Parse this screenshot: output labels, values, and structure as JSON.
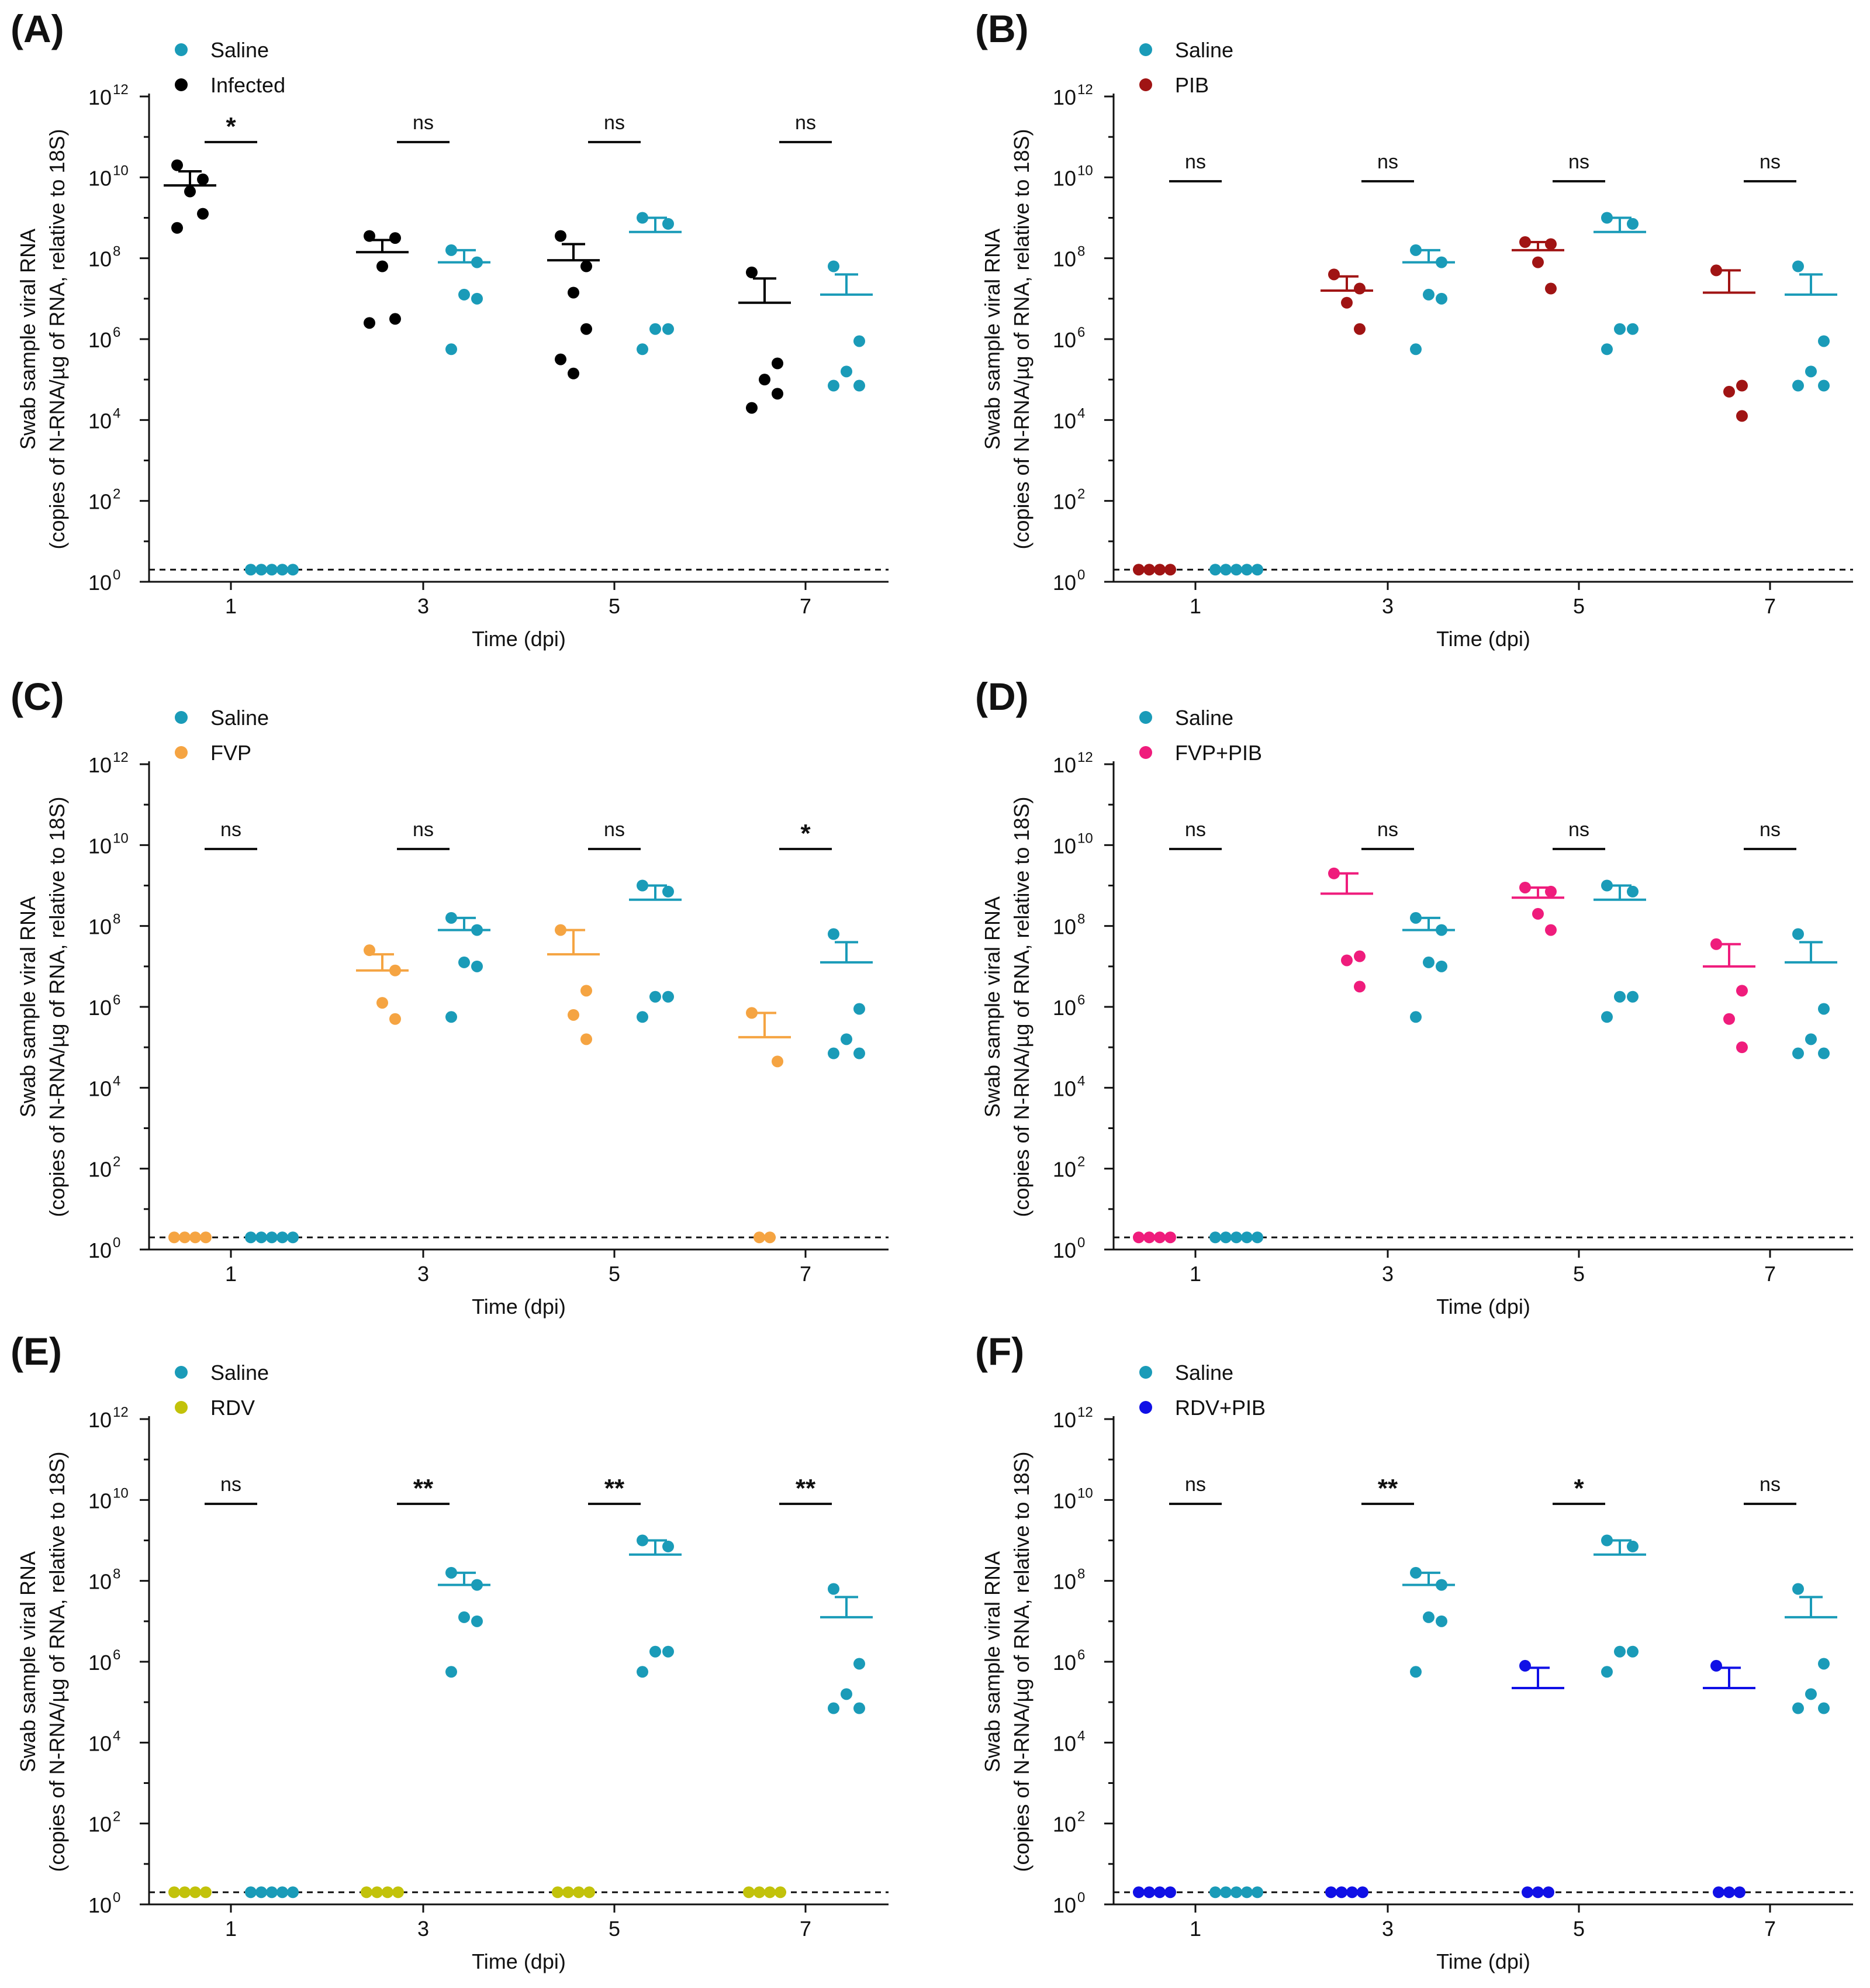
{
  "chart_data": [
    {
      "panel_letter": "(A)",
      "type": "scatter",
      "title": "",
      "xlabel": "Time (dpi)",
      "ylabel_line1": "Swab sample viral RNA",
      "ylabel_line2": "(copies of N-RNA/µg of RNA, relative to 18S)",
      "y_scale": "log10",
      "ylim_exponent": [
        0,
        12
      ],
      "y_tick_base": "10",
      "y_tick_exponents": [
        "0",
        "2",
        "4",
        "6",
        "8",
        "10",
        "12"
      ],
      "categories": [
        "1",
        "3",
        "5",
        "7"
      ],
      "detection_limit_log10": 0.3,
      "legend_position": "top-left",
      "series": [
        {
          "name": "Saline",
          "color": "#1a9bb8",
          "points_log10": [
            [
              0.3,
              0.3,
              0.3,
              0.3,
              0.3
            ],
            [
              8.2,
              7.9,
              7.1,
              7.0,
              5.75
            ],
            [
              9.0,
              8.85,
              6.25,
              6.25,
              5.75
            ],
            [
              7.8,
              5.95,
              5.2,
              4.85,
              4.85
            ]
          ],
          "mean_log10": [
            0.3,
            7.9,
            8.65,
            7.1
          ],
          "sem_top_log10": [
            null,
            8.2,
            9.0,
            7.6
          ]
        },
        {
          "name": "Infected",
          "color": "#000000",
          "points_log10": [
            [
              10.3,
              9.95,
              9.65,
              9.1,
              8.75
            ],
            [
              8.55,
              8.5,
              7.8,
              6.5,
              6.4
            ],
            [
              8.55,
              7.8,
              7.15,
              6.25,
              5.5,
              5.15
            ],
            [
              7.65,
              5.4,
              5.0,
              4.65,
              4.3
            ]
          ],
          "mean_log10": [
            9.8,
            8.15,
            7.95,
            6.9
          ],
          "sem_top_log10": [
            10.15,
            8.45,
            8.35,
            7.5
          ]
        }
      ],
      "significance": [
        "*",
        "ns",
        "ns",
        "ns"
      ]
    },
    {
      "panel_letter": "(B)",
      "type": "scatter",
      "title": "",
      "xlabel": "Time (dpi)",
      "ylabel_line1": "Swab sample viral RNA",
      "ylabel_line2": "(copies of N-RNA/µg of RNA, relative to 18S)",
      "y_scale": "log10",
      "ylim_exponent": [
        0,
        12
      ],
      "y_tick_base": "10",
      "y_tick_exponents": [
        "0",
        "2",
        "4",
        "6",
        "8",
        "10",
        "12"
      ],
      "categories": [
        "1",
        "3",
        "5",
        "7"
      ],
      "detection_limit_log10": 0.3,
      "legend_position": "top-left",
      "series": [
        {
          "name": "Saline",
          "color": "#1a9bb8",
          "points_log10": [
            [
              0.3,
              0.3,
              0.3,
              0.3,
              0.3
            ],
            [
              8.2,
              7.9,
              7.1,
              7.0,
              5.75
            ],
            [
              9.0,
              8.85,
              6.25,
              6.25,
              5.75
            ],
            [
              7.8,
              5.95,
              5.2,
              4.85,
              4.85
            ]
          ],
          "mean_log10": [
            0.3,
            7.9,
            8.65,
            7.1
          ],
          "sem_top_log10": [
            null,
            8.2,
            9.0,
            7.6
          ]
        },
        {
          "name": "PIB",
          "color": "#a01414",
          "points_log10": [
            [
              0.3,
              0.3,
              0.3,
              0.3
            ],
            [
              7.6,
              7.25,
              6.9,
              6.25
            ],
            [
              8.4,
              8.35,
              7.9,
              7.25
            ],
            [
              7.7,
              4.85,
              4.7,
              4.1
            ]
          ],
          "mean_log10": [
            0.3,
            7.2,
            8.2,
            7.15
          ],
          "sem_top_log10": [
            null,
            7.55,
            8.4,
            7.7
          ]
        }
      ],
      "significance": [
        "ns",
        "ns",
        "ns",
        "ns"
      ]
    },
    {
      "panel_letter": "(C)",
      "type": "scatter",
      "title": "",
      "xlabel": "Time (dpi)",
      "ylabel_line1": "Swab sample viral RNA",
      "ylabel_line2": "(copies of N-RNA/µg of RNA, relative to 18S)",
      "y_scale": "log10",
      "ylim_exponent": [
        0,
        12
      ],
      "y_tick_base": "10",
      "y_tick_exponents": [
        "0",
        "2",
        "4",
        "6",
        "8",
        "10",
        "12"
      ],
      "categories": [
        "1",
        "3",
        "5",
        "7"
      ],
      "detection_limit_log10": 0.3,
      "legend_position": "top-left",
      "series": [
        {
          "name": "Saline",
          "color": "#1a9bb8",
          "points_log10": [
            [
              0.3,
              0.3,
              0.3,
              0.3,
              0.3
            ],
            [
              8.2,
              7.9,
              7.1,
              7.0,
              5.75
            ],
            [
              9.0,
              8.85,
              6.25,
              6.25,
              5.75
            ],
            [
              7.8,
              5.95,
              5.2,
              4.85,
              4.85
            ]
          ],
          "mean_log10": [
            0.3,
            7.9,
            8.65,
            7.1
          ],
          "sem_top_log10": [
            null,
            8.2,
            9.0,
            7.6
          ]
        },
        {
          "name": "FVP",
          "color": "#f5a442",
          "points_log10": [
            [
              0.3,
              0.3,
              0.3,
              0.3
            ],
            [
              7.4,
              6.9,
              6.1,
              5.7
            ],
            [
              7.9,
              6.4,
              5.8,
              5.2
            ],
            [
              5.85,
              4.65,
              0.3,
              0.3
            ]
          ],
          "mean_log10": [
            0.3,
            6.9,
            7.3,
            5.25
          ],
          "sem_top_log10": [
            null,
            7.3,
            7.9,
            5.85
          ]
        }
      ],
      "significance": [
        "ns",
        "ns",
        "ns",
        "*"
      ]
    },
    {
      "panel_letter": "(D)",
      "type": "scatter",
      "title": "",
      "xlabel": "Time (dpi)",
      "ylabel_line1": "Swab sample viral RNA",
      "ylabel_line2": "(copies of N-RNA/µg of RNA, relative to 18S)",
      "y_scale": "log10",
      "ylim_exponent": [
        0,
        12
      ],
      "y_tick_base": "10",
      "y_tick_exponents": [
        "0",
        "2",
        "4",
        "6",
        "8",
        "10",
        "12"
      ],
      "categories": [
        "1",
        "3",
        "5",
        "7"
      ],
      "detection_limit_log10": 0.3,
      "legend_position": "top-left",
      "series": [
        {
          "name": "Saline",
          "color": "#1a9bb8",
          "points_log10": [
            [
              0.3,
              0.3,
              0.3,
              0.3,
              0.3
            ],
            [
              8.2,
              7.9,
              7.1,
              7.0,
              5.75
            ],
            [
              9.0,
              8.85,
              6.25,
              6.25,
              5.75
            ],
            [
              7.8,
              5.95,
              5.2,
              4.85,
              4.85
            ]
          ],
          "mean_log10": [
            0.3,
            7.9,
            8.65,
            7.1
          ],
          "sem_top_log10": [
            null,
            8.2,
            9.0,
            7.6
          ]
        },
        {
          "name": "FVP+PIB",
          "color": "#ef1c7c",
          "points_log10": [
            [
              0.3,
              0.3,
              0.3,
              0.3
            ],
            [
              9.3,
              7.25,
              7.15,
              6.5
            ],
            [
              8.95,
              8.85,
              8.3,
              7.9
            ],
            [
              7.55,
              6.4,
              5.7,
              5.0
            ]
          ],
          "mean_log10": [
            0.3,
            8.8,
            8.7,
            7.0
          ],
          "sem_top_log10": [
            null,
            9.3,
            8.95,
            7.55
          ]
        }
      ],
      "significance": [
        "ns",
        "ns",
        "ns",
        "ns"
      ]
    },
    {
      "panel_letter": "(E)",
      "type": "scatter",
      "title": "",
      "xlabel": "Time (dpi)",
      "ylabel_line1": "Swab sample viral RNA",
      "ylabel_line2": "(copies of N-RNA/µg of RNA, relative to 18S)",
      "y_scale": "log10",
      "ylim_exponent": [
        0,
        12
      ],
      "y_tick_base": "10",
      "y_tick_exponents": [
        "0",
        "2",
        "4",
        "6",
        "8",
        "10",
        "12"
      ],
      "categories": [
        "1",
        "3",
        "5",
        "7"
      ],
      "detection_limit_log10": 0.3,
      "legend_position": "top-left",
      "series": [
        {
          "name": "Saline",
          "color": "#1a9bb8",
          "points_log10": [
            [
              0.3,
              0.3,
              0.3,
              0.3,
              0.3
            ],
            [
              8.2,
              7.9,
              7.1,
              7.0,
              5.75
            ],
            [
              9.0,
              8.85,
              6.25,
              6.25,
              5.75
            ],
            [
              7.8,
              5.95,
              5.2,
              4.85,
              4.85
            ]
          ],
          "mean_log10": [
            0.3,
            7.9,
            8.65,
            7.1
          ],
          "sem_top_log10": [
            null,
            8.2,
            9.0,
            7.6
          ]
        },
        {
          "name": "RDV",
          "color": "#c2c20a",
          "points_log10": [
            [
              0.3,
              0.3,
              0.3,
              0.3
            ],
            [
              0.3,
              0.3,
              0.3,
              0.3
            ],
            [
              0.3,
              0.3,
              0.3,
              0.3
            ],
            [
              0.3,
              0.3,
              0.3,
              0.3
            ]
          ],
          "mean_log10": [
            0.3,
            0.3,
            0.3,
            0.3
          ],
          "sem_top_log10": [
            null,
            null,
            null,
            null
          ]
        }
      ],
      "significance": [
        "ns",
        "**",
        "**",
        "**"
      ]
    },
    {
      "panel_letter": "(F)",
      "type": "scatter",
      "title": "",
      "xlabel": "Time (dpi)",
      "ylabel_line1": "Swab sample viral RNA",
      "ylabel_line2": "(copies of N-RNA/µg of RNA, relative to 18S)",
      "y_scale": "log10",
      "ylim_exponent": [
        0,
        12
      ],
      "y_tick_base": "10",
      "y_tick_exponents": [
        "0",
        "2",
        "4",
        "6",
        "8",
        "10",
        "12"
      ],
      "categories": [
        "1",
        "3",
        "5",
        "7"
      ],
      "detection_limit_log10": 0.3,
      "legend_position": "top-left",
      "series": [
        {
          "name": "Saline",
          "color": "#1a9bb8",
          "points_log10": [
            [
              0.3,
              0.3,
              0.3,
              0.3,
              0.3
            ],
            [
              8.2,
              7.9,
              7.1,
              7.0,
              5.75
            ],
            [
              9.0,
              8.85,
              6.25,
              6.25,
              5.75
            ],
            [
              7.8,
              5.95,
              5.2,
              4.85,
              4.85
            ]
          ],
          "mean_log10": [
            0.3,
            7.9,
            8.65,
            7.1
          ],
          "sem_top_log10": [
            null,
            8.2,
            9.0,
            7.6
          ]
        },
        {
          "name": "RDV+PIB",
          "color": "#1010e6",
          "points_log10": [
            [
              0.3,
              0.3,
              0.3,
              0.3
            ],
            [
              0.3,
              0.3,
              0.3,
              0.3
            ],
            [
              5.9,
              0.3,
              0.3,
              0.3
            ],
            [
              5.9,
              0.3,
              0.3,
              0.3
            ]
          ],
          "mean_log10": [
            0.3,
            0.3,
            5.35,
            5.35
          ],
          "sem_top_log10": [
            null,
            null,
            5.85,
            5.85
          ]
        }
      ],
      "significance": [
        "ns",
        "**",
        "*",
        "ns"
      ]
    }
  ]
}
